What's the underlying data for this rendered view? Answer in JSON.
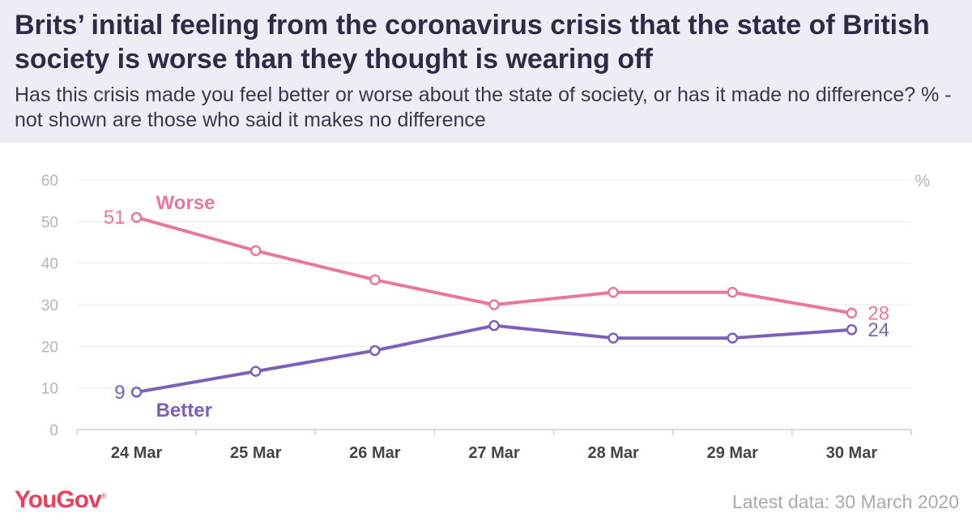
{
  "header": {
    "title": "Brits’ initial feeling from the coronavirus crisis that the state of British society is worse than they thought is wearing off",
    "subtitle": "Has this crisis made you feel better or worse about the state of society, or has it made no difference? % - not shown are those who said it makes no difference"
  },
  "footer": {
    "brand": "YouGov",
    "source_note": "Latest data: 30 March 2020"
  },
  "chart_data": {
    "type": "line",
    "x": [
      "24 Mar",
      "25 Mar",
      "26 Mar",
      "27 Mar",
      "28 Mar",
      "29 Mar",
      "30 Mar"
    ],
    "series": [
      {
        "name": "Worse",
        "values": [
          51,
          43,
          36,
          30,
          33,
          33,
          28
        ],
        "color": "#e8779e"
      },
      {
        "name": "Better",
        "values": [
          9,
          14,
          19,
          25,
          22,
          22,
          24
        ],
        "color": "#7b5fb8"
      }
    ],
    "ylim": [
      0,
      60
    ],
    "yticks": [
      0,
      10,
      20,
      30,
      40,
      50,
      60
    ],
    "y_unit_label": "%",
    "grid": true,
    "end_labels": {
      "first": true,
      "last": true
    }
  }
}
